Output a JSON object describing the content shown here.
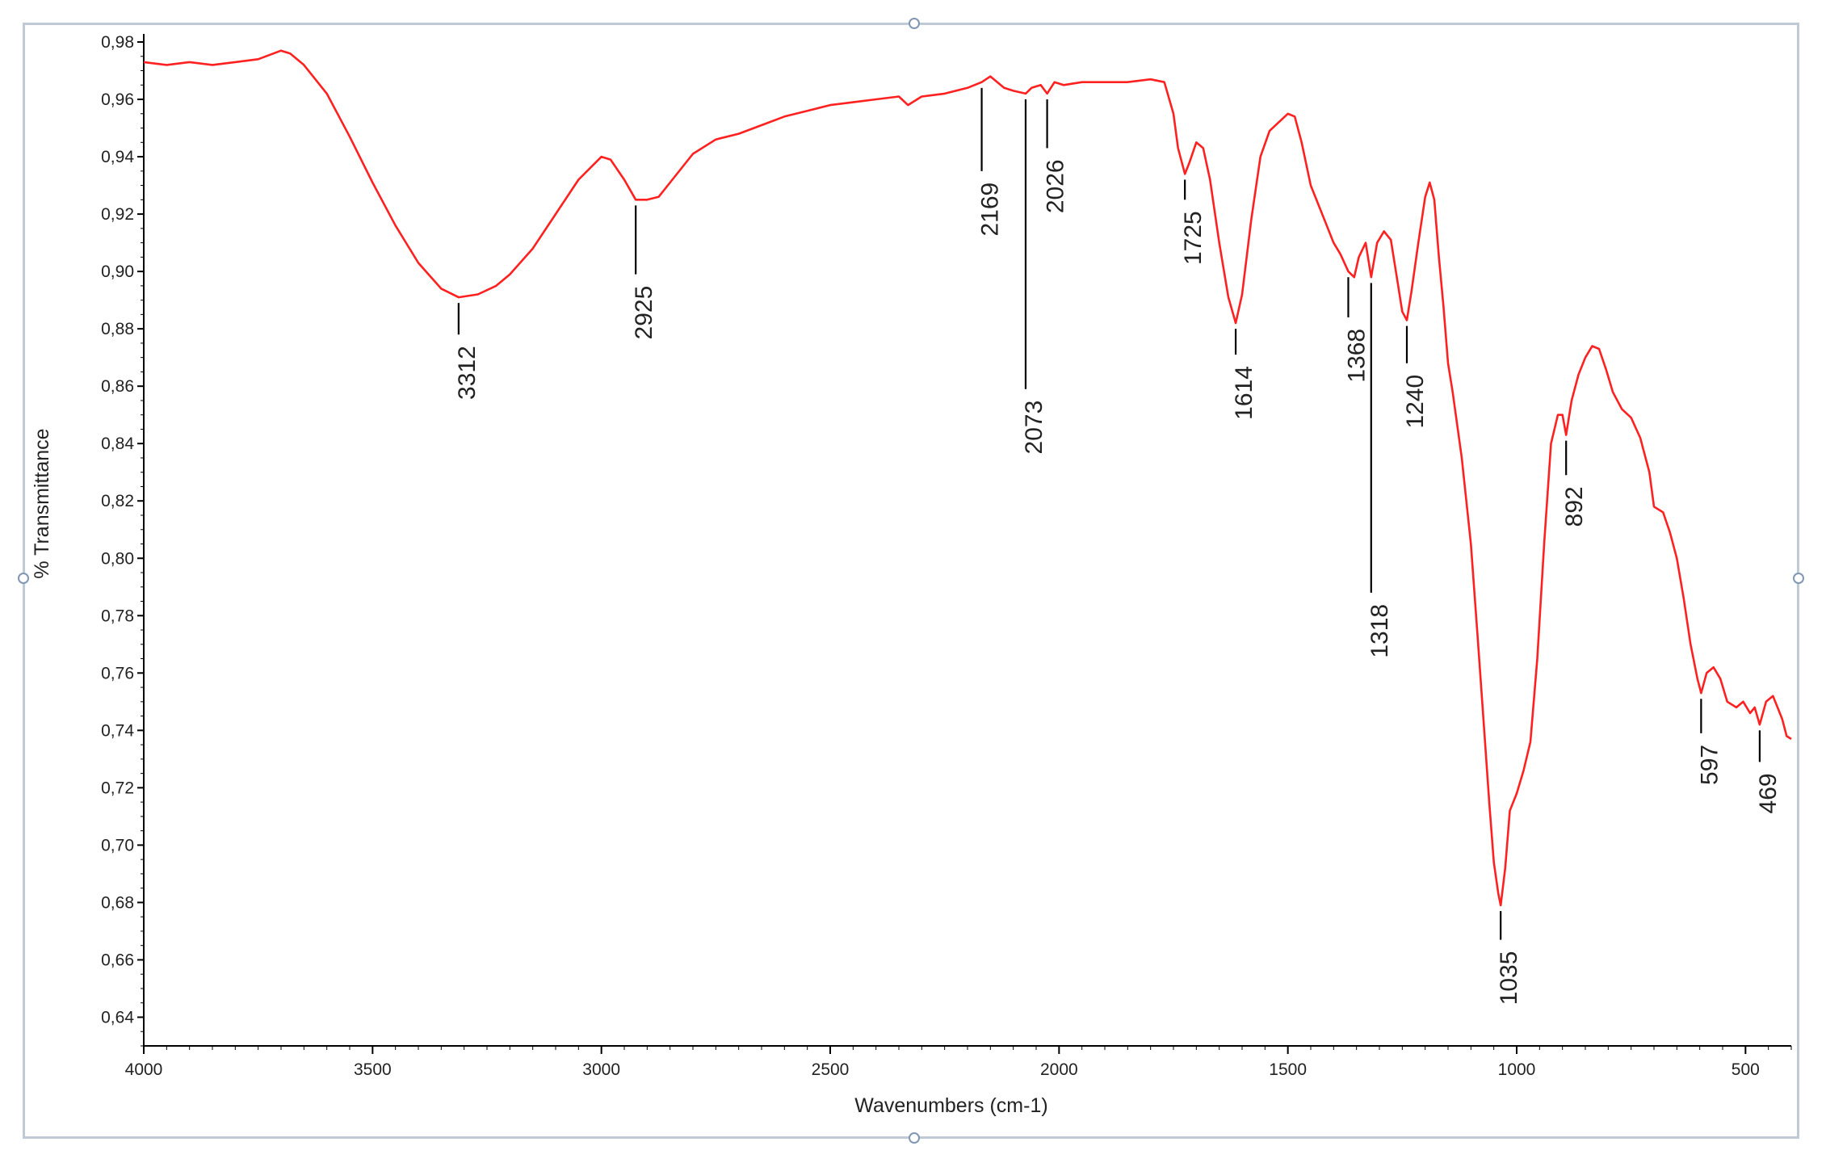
{
  "chart_data": {
    "type": "line",
    "title": "",
    "xlabel": "Wavenumbers (cm-1)",
    "ylabel": "% Transmittance",
    "xlim": [
      4000,
      400
    ],
    "ylim": [
      0.63,
      0.98
    ],
    "x_ticks": [
      "4000",
      "3500",
      "3000",
      "2500",
      "2000",
      "1500",
      "1000",
      "500"
    ],
    "y_ticks": [
      "0,98",
      "0,96",
      "0,94",
      "0,92",
      "0,90",
      "0,88",
      "0,86",
      "0,84",
      "0,82",
      "0,80",
      "0,78",
      "0,76",
      "0,74",
      "0,72",
      "0,70",
      "0,68",
      "0,66",
      "0,64"
    ],
    "line_color": "#ff2020",
    "grid": false,
    "series": [
      {
        "points": [
          [
            4000,
            0.973
          ],
          [
            3950,
            0.972
          ],
          [
            3900,
            0.973
          ],
          [
            3850,
            0.972
          ],
          [
            3800,
            0.973
          ],
          [
            3750,
            0.974
          ],
          [
            3700,
            0.977
          ],
          [
            3680,
            0.976
          ],
          [
            3650,
            0.972
          ],
          [
            3600,
            0.962
          ],
          [
            3550,
            0.947
          ],
          [
            3500,
            0.931
          ],
          [
            3450,
            0.916
          ],
          [
            3400,
            0.903
          ],
          [
            3350,
            0.894
          ],
          [
            3312,
            0.891
          ],
          [
            3270,
            0.892
          ],
          [
            3230,
            0.895
          ],
          [
            3200,
            0.899
          ],
          [
            3150,
            0.908
          ],
          [
            3100,
            0.92
          ],
          [
            3050,
            0.932
          ],
          [
            3000,
            0.94
          ],
          [
            2980,
            0.939
          ],
          [
            2950,
            0.932
          ],
          [
            2925,
            0.925
          ],
          [
            2900,
            0.925
          ],
          [
            2875,
            0.926
          ],
          [
            2850,
            0.931
          ],
          [
            2800,
            0.941
          ],
          [
            2750,
            0.946
          ],
          [
            2700,
            0.948
          ],
          [
            2650,
            0.951
          ],
          [
            2600,
            0.954
          ],
          [
            2550,
            0.956
          ],
          [
            2500,
            0.958
          ],
          [
            2450,
            0.959
          ],
          [
            2400,
            0.96
          ],
          [
            2350,
            0.961
          ],
          [
            2330,
            0.958
          ],
          [
            2300,
            0.961
          ],
          [
            2250,
            0.962
          ],
          [
            2200,
            0.964
          ],
          [
            2169,
            0.966
          ],
          [
            2150,
            0.968
          ],
          [
            2120,
            0.964
          ],
          [
            2100,
            0.963
          ],
          [
            2073,
            0.962
          ],
          [
            2060,
            0.964
          ],
          [
            2040,
            0.965
          ],
          [
            2026,
            0.962
          ],
          [
            2010,
            0.966
          ],
          [
            1990,
            0.965
          ],
          [
            1950,
            0.966
          ],
          [
            1900,
            0.966
          ],
          [
            1850,
            0.966
          ],
          [
            1800,
            0.967
          ],
          [
            1770,
            0.966
          ],
          [
            1750,
            0.955
          ],
          [
            1740,
            0.943
          ],
          [
            1725,
            0.934
          ],
          [
            1715,
            0.938
          ],
          [
            1700,
            0.945
          ],
          [
            1685,
            0.943
          ],
          [
            1670,
            0.932
          ],
          [
            1650,
            0.91
          ],
          [
            1630,
            0.891
          ],
          [
            1614,
            0.882
          ],
          [
            1600,
            0.892
          ],
          [
            1580,
            0.918
          ],
          [
            1560,
            0.94
          ],
          [
            1540,
            0.949
          ],
          [
            1520,
            0.952
          ],
          [
            1500,
            0.955
          ],
          [
            1485,
            0.954
          ],
          [
            1470,
            0.945
          ],
          [
            1450,
            0.93
          ],
          [
            1420,
            0.918
          ],
          [
            1400,
            0.91
          ],
          [
            1385,
            0.906
          ],
          [
            1368,
            0.9
          ],
          [
            1355,
            0.898
          ],
          [
            1345,
            0.905
          ],
          [
            1330,
            0.91
          ],
          [
            1318,
            0.898
          ],
          [
            1305,
            0.91
          ],
          [
            1290,
            0.914
          ],
          [
            1275,
            0.911
          ],
          [
            1260,
            0.896
          ],
          [
            1250,
            0.886
          ],
          [
            1240,
            0.883
          ],
          [
            1230,
            0.893
          ],
          [
            1215,
            0.91
          ],
          [
            1200,
            0.926
          ],
          [
            1190,
            0.931
          ],
          [
            1180,
            0.925
          ],
          [
            1170,
            0.905
          ],
          [
            1160,
            0.888
          ],
          [
            1150,
            0.868
          ],
          [
            1140,
            0.858
          ],
          [
            1120,
            0.835
          ],
          [
            1100,
            0.805
          ],
          [
            1085,
            0.772
          ],
          [
            1070,
            0.738
          ],
          [
            1060,
            0.715
          ],
          [
            1050,
            0.694
          ],
          [
            1040,
            0.683
          ],
          [
            1035,
            0.679
          ],
          [
            1025,
            0.692
          ],
          [
            1015,
            0.712
          ],
          [
            1000,
            0.718
          ],
          [
            985,
            0.726
          ],
          [
            970,
            0.736
          ],
          [
            955,
            0.765
          ],
          [
            940,
            0.805
          ],
          [
            925,
            0.84
          ],
          [
            910,
            0.85
          ],
          [
            900,
            0.85
          ],
          [
            892,
            0.843
          ],
          [
            880,
            0.855
          ],
          [
            865,
            0.864
          ],
          [
            850,
            0.87
          ],
          [
            835,
            0.874
          ],
          [
            820,
            0.873
          ],
          [
            805,
            0.866
          ],
          [
            790,
            0.858
          ],
          [
            770,
            0.852
          ],
          [
            750,
            0.849
          ],
          [
            730,
            0.842
          ],
          [
            710,
            0.83
          ],
          [
            700,
            0.818
          ],
          [
            680,
            0.816
          ],
          [
            665,
            0.809
          ],
          [
            650,
            0.8
          ],
          [
            635,
            0.786
          ],
          [
            620,
            0.77
          ],
          [
            605,
            0.758
          ],
          [
            597,
            0.753
          ],
          [
            585,
            0.76
          ],
          [
            570,
            0.762
          ],
          [
            555,
            0.758
          ],
          [
            540,
            0.75
          ],
          [
            520,
            0.748
          ],
          [
            505,
            0.75
          ],
          [
            490,
            0.746
          ],
          [
            480,
            0.748
          ],
          [
            469,
            0.742
          ],
          [
            455,
            0.75
          ],
          [
            440,
            0.752
          ],
          [
            430,
            0.748
          ],
          [
            420,
            0.744
          ],
          [
            410,
            0.738
          ],
          [
            400,
            0.737
          ]
        ]
      }
    ],
    "peaks": [
      {
        "label": "3312",
        "x": 3312,
        "y_top": 0.889,
        "y_bottom": 0.878
      },
      {
        "label": "2925",
        "x": 2925,
        "y_top": 0.923,
        "y_bottom": 0.899
      },
      {
        "label": "2169",
        "x": 2169,
        "y_top": 0.964,
        "y_bottom": 0.935
      },
      {
        "label": "2073",
        "x": 2073,
        "y_top": 0.96,
        "y_bottom": 0.859
      },
      {
        "label": "2026",
        "x": 2026,
        "y_top": 0.96,
        "y_bottom": 0.943
      },
      {
        "label": "1725",
        "x": 1725,
        "y_top": 0.932,
        "y_bottom": 0.925
      },
      {
        "label": "1614",
        "x": 1614,
        "y_top": 0.88,
        "y_bottom": 0.871
      },
      {
        "label": "1368",
        "x": 1368,
        "y_top": 0.898,
        "y_bottom": 0.884
      },
      {
        "label": "1318",
        "x": 1318,
        "y_top": 0.896,
        "y_bottom": 0.788
      },
      {
        "label": "1240",
        "x": 1240,
        "y_top": 0.881,
        "y_bottom": 0.868
      },
      {
        "label": "1035",
        "x": 1035,
        "y_top": 0.677,
        "y_bottom": 0.667
      },
      {
        "label": "892",
        "x": 892,
        "y_top": 0.841,
        "y_bottom": 0.829
      },
      {
        "label": "597",
        "x": 597,
        "y_top": 0.751,
        "y_bottom": 0.739
      },
      {
        "label": "469",
        "x": 469,
        "y_top": 0.74,
        "y_bottom": 0.729
      }
    ]
  }
}
